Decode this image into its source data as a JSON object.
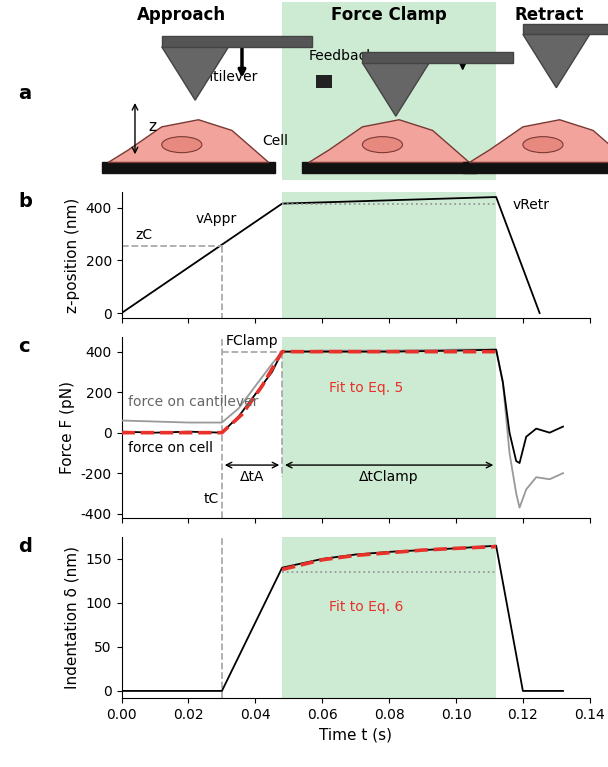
{
  "clamp_region": [
    0.048,
    0.112
  ],
  "schematic": {
    "panel": "a",
    "headers": [
      "Approach",
      "Force Clamp",
      "Retract"
    ],
    "labels": {
      "cantilever": "Cantilever",
      "cell": "Cell",
      "feedback": "Feedback",
      "z": "z"
    }
  },
  "chart_data": [
    {
      "type": "line",
      "panel": "b",
      "ylabel": "z-position (nm)",
      "xlim": [
        0.0,
        0.14
      ],
      "xticks": [
        0.0,
        0.02,
        0.04,
        0.06,
        0.08,
        0.1,
        0.12,
        0.14
      ],
      "ylim": [
        -20,
        460
      ],
      "yticks": [
        0,
        200,
        400
      ],
      "tick_labels": "y",
      "annotations": [
        "zC",
        "vAppr",
        "vRetr"
      ],
      "series": [
        {
          "color": "#000000",
          "line_style": "solid",
          "x": [
            0.0,
            0.048,
            0.112,
            0.125
          ],
          "values": [
            0,
            415,
            440,
            0
          ]
        },
        {
          "color": "#999999",
          "line_style": "dotted",
          "x": [
            0.048,
            0.112
          ],
          "values": [
            415,
            415
          ]
        },
        {
          "color": "#aaaaaa",
          "line_style": "dashed",
          "x": [
            0.0,
            0.03
          ],
          "values": [
            255,
            255
          ]
        },
        {
          "color": "#aaaaaa",
          "line_style": "dashed",
          "x": [
            0.03,
            0.03
          ],
          "values": [
            255,
            -20
          ]
        }
      ]
    },
    {
      "type": "line",
      "panel": "c",
      "ylabel": "Force F (pN)",
      "xlim": [
        0.0,
        0.14
      ],
      "xticks": [
        0.0,
        0.02,
        0.04,
        0.06,
        0.08,
        0.1,
        0.12,
        0.14
      ],
      "ylim": [
        -420,
        470
      ],
      "yticks": [
        -400,
        -200,
        0,
        200,
        400
      ],
      "tick_labels": "y",
      "annotations": [
        "FClamp"
      ],
      "vline": {
        "x": 0.03,
        "label": "tC"
      },
      "intervals": [
        {
          "label": "ΔtA",
          "x": [
            0.03,
            0.048
          ],
          "y": -160
        },
        {
          "label": "ΔtClamp",
          "x": [
            0.048,
            0.112
          ],
          "y": -160
        }
      ],
      "series": [
        {
          "name": "force on cantilever",
          "color": "#999999",
          "line_style": "solid",
          "x": [
            0.0,
            0.01,
            0.02,
            0.03,
            0.035,
            0.04,
            0.045,
            0.048,
            0.06,
            0.08,
            0.1,
            0.112,
            0.114,
            0.116,
            0.118,
            0.119,
            0.121,
            0.124,
            0.128,
            0.132
          ],
          "values": [
            60,
            55,
            50,
            50,
            120,
            230,
            340,
            400,
            405,
            405,
            410,
            410,
            250,
            -100,
            -300,
            -370,
            -280,
            -220,
            -230,
            -200
          ]
        },
        {
          "name": "force on cell",
          "color": "#000000",
          "line_style": "solid",
          "x": [
            0.0,
            0.01,
            0.02,
            0.03,
            0.035,
            0.04,
            0.045,
            0.048,
            0.06,
            0.08,
            0.1,
            0.112,
            0.114,
            0.116,
            0.118,
            0.119,
            0.121,
            0.124,
            0.128,
            0.132
          ],
          "values": [
            5,
            0,
            5,
            0,
            80,
            190,
            300,
            400,
            400,
            400,
            405,
            410,
            250,
            0,
            -140,
            -150,
            -20,
            20,
            0,
            30
          ]
        },
        {
          "name": "Fit to Eq. 5",
          "color": "#e8312a",
          "line_style": "dashed",
          "x": [
            0.0,
            0.03,
            0.036,
            0.042,
            0.048,
            0.112
          ],
          "values": [
            0,
            0,
            90,
            230,
            400,
            400
          ]
        },
        {
          "color": "#aaaaaa",
          "line_style": "dashed",
          "x": [
            0.03,
            0.048
          ],
          "values": [
            400,
            400
          ]
        },
        {
          "color": "#aaaaaa",
          "line_style": "dashed",
          "x": [
            0.048,
            0.048
          ],
          "values": [
            400,
            -220
          ]
        }
      ]
    },
    {
      "type": "line",
      "panel": "d",
      "ylabel": "Indentation δ (nm)",
      "xlabel": "Time t (s)",
      "xlim": [
        0.0,
        0.14
      ],
      "xticks": [
        {
          "value": 0.0,
          "label": "0.00"
        },
        {
          "value": 0.02,
          "label": "0.02"
        },
        {
          "value": 0.04,
          "label": "0.04"
        },
        {
          "value": 0.06,
          "label": "0.06"
        },
        {
          "value": 0.08,
          "label": "0.08"
        },
        {
          "value": 0.1,
          "label": "0.10"
        },
        {
          "value": 0.12,
          "label": "0.12"
        },
        {
          "value": 0.14,
          "label": "0.14"
        }
      ],
      "ylim": [
        -8,
        175
      ],
      "yticks": [
        0,
        50,
        100,
        150
      ],
      "vline": {
        "x": 0.03
      },
      "series": [
        {
          "color": "#000000",
          "line_style": "solid",
          "x": [
            0.0,
            0.03,
            0.048,
            0.06,
            0.07,
            0.08,
            0.09,
            0.1,
            0.112,
            0.12,
            0.132
          ],
          "values": [
            0,
            0,
            140,
            150,
            155,
            158,
            160,
            162,
            165,
            0,
            0
          ]
        },
        {
          "name": "Fit to Eq. 6",
          "color": "#e8312a",
          "line_style": "dashed",
          "x": [
            0.048,
            0.06,
            0.07,
            0.08,
            0.09,
            0.1,
            0.112
          ],
          "values": [
            138,
            149,
            154,
            157,
            160,
            162,
            164
          ]
        },
        {
          "color": "#999999",
          "line_style": "dotted",
          "x": [
            0.048,
            0.112
          ],
          "values": [
            135,
            135
          ]
        }
      ]
    }
  ]
}
